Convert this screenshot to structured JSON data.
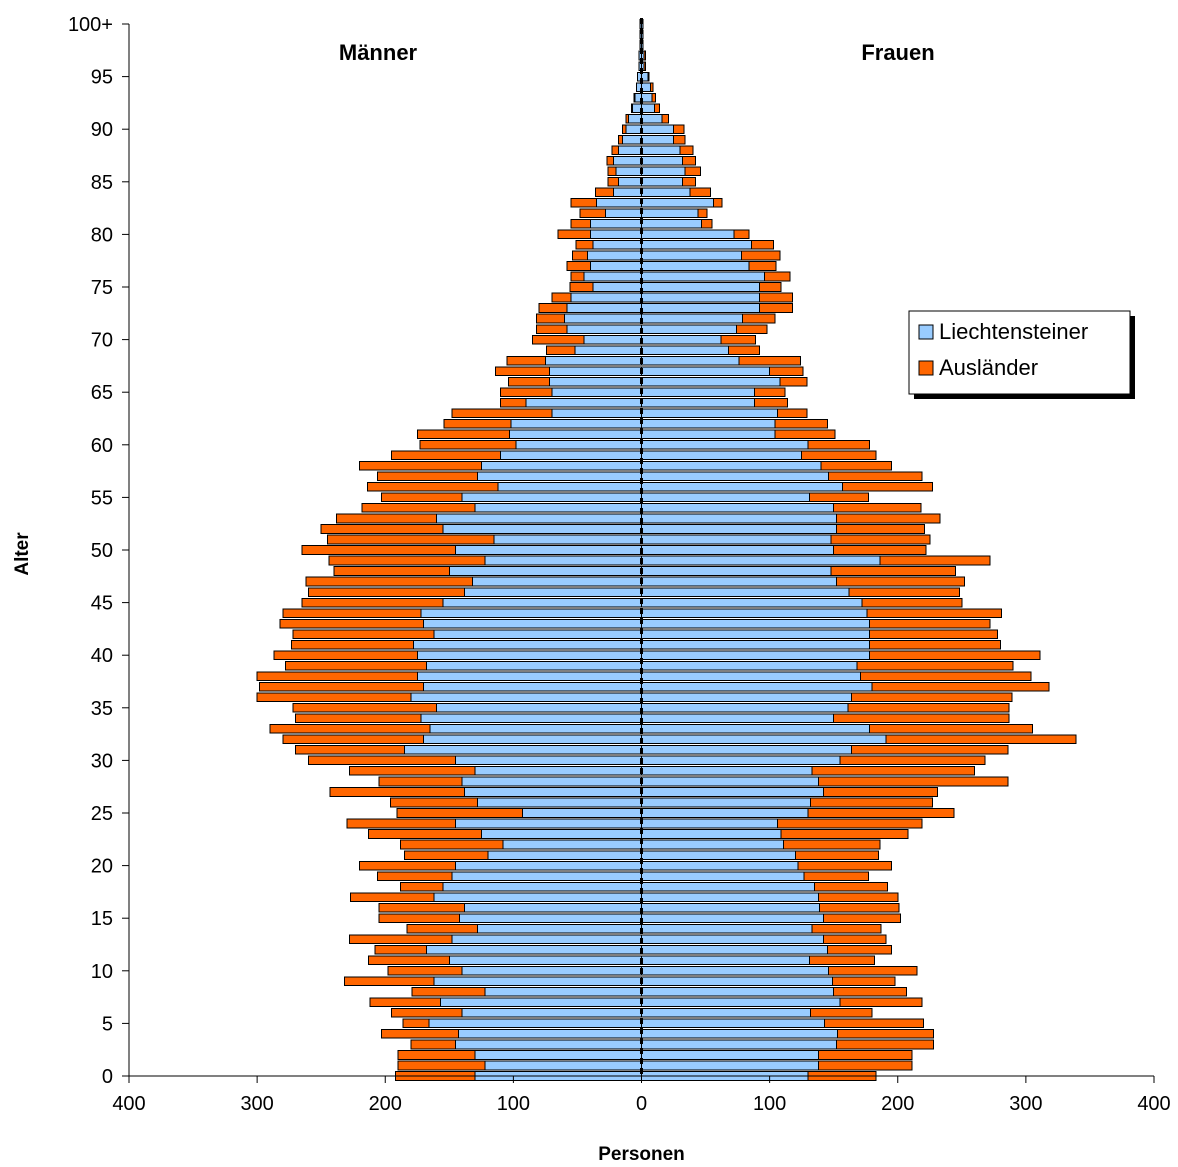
{
  "chart_data": {
    "type": "bar",
    "orientation": "horizontal-population-pyramid",
    "title": "",
    "group_labels": {
      "left": "Männer",
      "right": "Frauen"
    },
    "xlabel": "Personen",
    "ylabel": "Alter",
    "xlim": [
      -400,
      400
    ],
    "x_ticks": [
      -400,
      -300,
      -200,
      -100,
      0,
      100,
      200,
      300,
      400
    ],
    "x_tick_labels": [
      "400",
      "300",
      "200",
      "100",
      "0",
      "100",
      "200",
      "300",
      "400"
    ],
    "y_ticks": [
      0,
      5,
      10,
      15,
      20,
      25,
      30,
      35,
      40,
      45,
      50,
      55,
      60,
      65,
      70,
      75,
      80,
      85,
      90,
      95,
      100
    ],
    "y_tick_labels": [
      "0",
      "5",
      "10",
      "15",
      "20",
      "25",
      "30",
      "35",
      "40",
      "45",
      "50",
      "55",
      "60",
      "65",
      "70",
      "75",
      "80",
      "85",
      "90",
      "95",
      "100+"
    ],
    "legend_position": "right",
    "colors": {
      "Liechtensteiner": "#99ccff",
      "Ausländer": "#ff6600"
    },
    "ages": [
      0,
      1,
      2,
      3,
      4,
      5,
      6,
      7,
      8,
      9,
      10,
      11,
      12,
      13,
      14,
      15,
      16,
      17,
      18,
      19,
      20,
      21,
      22,
      23,
      24,
      25,
      26,
      27,
      28,
      29,
      30,
      31,
      32,
      33,
      34,
      35,
      36,
      37,
      38,
      39,
      40,
      41,
      42,
      43,
      44,
      45,
      46,
      47,
      48,
      49,
      50,
      51,
      52,
      53,
      54,
      55,
      56,
      57,
      58,
      59,
      60,
      61,
      62,
      63,
      64,
      65,
      66,
      67,
      68,
      69,
      70,
      71,
      72,
      73,
      74,
      75,
      76,
      77,
      78,
      79,
      80,
      81,
      82,
      83,
      84,
      85,
      86,
      87,
      88,
      89,
      90,
      91,
      92,
      93,
      94,
      95,
      96,
      97,
      98,
      99,
      100
    ],
    "series": [
      {
        "name": "Liechtensteiner",
        "side": "Männer",
        "values": [
          130,
          122,
          130,
          145,
          143,
          166,
          140,
          157,
          122,
          162,
          140,
          150,
          168,
          148,
          128,
          142,
          138,
          162,
          155,
          148,
          145,
          120,
          108,
          125,
          145,
          93,
          128,
          138,
          140,
          130,
          145,
          185,
          170,
          165,
          172,
          160,
          180,
          170,
          175,
          168,
          175,
          178,
          162,
          170,
          172,
          155,
          138,
          132,
          150,
          122,
          145,
          115,
          155,
          160,
          130,
          140,
          112,
          128,
          125,
          110,
          98,
          103,
          102,
          70,
          90,
          70,
          72,
          72,
          75,
          52,
          45,
          58,
          60,
          58,
          55,
          38,
          45,
          40,
          42,
          38,
          40,
          40,
          28,
          35,
          22,
          18,
          20,
          22,
          18,
          15,
          12,
          10,
          7,
          5,
          4,
          3,
          2,
          2,
          1,
          1,
          1
        ]
      },
      {
        "name": "Ausländer",
        "side": "Männer",
        "values": [
          62,
          68,
          60,
          35,
          60,
          20,
          55,
          55,
          57,
          70,
          58,
          63,
          40,
          80,
          55,
          63,
          67,
          65,
          33,
          58,
          75,
          65,
          80,
          88,
          85,
          98,
          68,
          105,
          65,
          98,
          115,
          85,
          110,
          125,
          98,
          112,
          120,
          128,
          125,
          110,
          112,
          95,
          110,
          112,
          108,
          110,
          122,
          130,
          90,
          122,
          120,
          130,
          95,
          78,
          88,
          63,
          102,
          78,
          95,
          85,
          75,
          72,
          52,
          78,
          20,
          40,
          32,
          42,
          30,
          22,
          40,
          24,
          22,
          22,
          15,
          18,
          10,
          18,
          12,
          13,
          25,
          15,
          20,
          20,
          14,
          8,
          6,
          5,
          5,
          3,
          3,
          2,
          1,
          1,
          0,
          0,
          0,
          0,
          0,
          0,
          0
        ]
      },
      {
        "name": "Liechtensteiner",
        "side": "Frauen",
        "values": [
          130,
          138,
          138,
          152,
          153,
          143,
          132,
          155,
          150,
          149,
          146,
          131,
          145,
          142,
          133,
          142,
          139,
          138,
          135,
          127,
          122,
          120,
          111,
          109,
          106,
          130,
          132,
          142,
          138,
          133,
          155,
          164,
          191,
          178,
          150,
          161,
          164,
          180,
          171,
          168,
          178,
          178,
          178,
          178,
          176,
          172,
          162,
          152,
          148,
          186,
          150,
          148,
          152,
          152,
          150,
          131,
          157,
          146,
          140,
          125,
          130,
          104,
          104,
          106,
          88,
          88,
          108,
          100,
          76,
          68,
          62,
          74,
          79,
          92,
          92,
          92,
          96,
          84,
          78,
          86,
          72,
          47,
          44,
          56,
          38,
          32,
          34,
          32,
          30,
          25,
          25,
          16,
          10,
          8,
          7,
          5,
          2,
          2,
          1,
          1,
          1
        ]
      },
      {
        "name": "Ausländer",
        "side": "Frauen",
        "values": [
          53,
          73,
          73,
          76,
          75,
          77,
          48,
          64,
          57,
          49,
          69,
          51,
          50,
          49,
          54,
          60,
          62,
          62,
          57,
          50,
          73,
          65,
          75,
          99,
          113,
          114,
          95,
          89,
          148,
          127,
          113,
          122,
          148,
          127,
          137,
          126,
          125,
          138,
          133,
          122,
          133,
          102,
          100,
          94,
          105,
          78,
          86,
          100,
          97,
          86,
          72,
          77,
          69,
          81,
          68,
          46,
          70,
          73,
          55,
          58,
          48,
          47,
          41,
          23,
          26,
          24,
          21,
          26,
          48,
          24,
          27,
          24,
          25,
          26,
          26,
          17,
          20,
          21,
          30,
          17,
          12,
          8,
          7,
          7,
          16,
          10,
          12,
          10,
          10,
          9,
          8,
          5,
          4,
          3,
          2,
          1,
          1,
          1,
          0,
          0,
          0
        ]
      }
    ]
  }
}
